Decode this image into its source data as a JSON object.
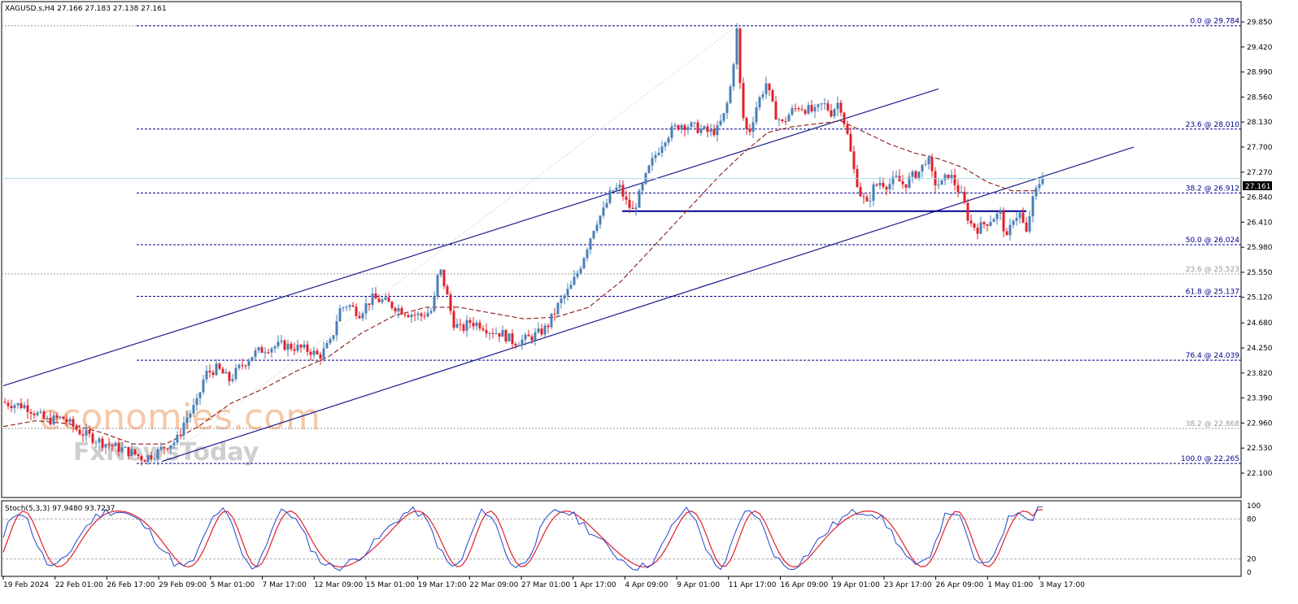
{
  "header": {
    "symbol_line": "XAGUSD.s,H4  27.166 27.183 27.138 27.161",
    "stoch_line": "Stoch(5,3,3) 97.9480 93.7237"
  },
  "watermark": {
    "line1": "economies.com",
    "line2": "FxNewsToday"
  },
  "colors": {
    "bull": "#4a7fb5",
    "bear": "#e0202a",
    "channel": "#1c1c8c",
    "fib": "#00008b",
    "fib_gray": "#9a9a9a",
    "ma": "#8b1a1a",
    "stoch_main": "#2244cc",
    "stoch_signal": "#e0202a",
    "current_price_line": "#a8d8e8"
  },
  "chart_data": {
    "type": "candlestick",
    "symbol": "XAGUSD.s",
    "timeframe": "H4",
    "ohlc_last": {
      "open": 27.166,
      "high": 27.183,
      "low": 27.138,
      "close": 27.161
    },
    "current_price": "27.161",
    "y_axis": {
      "ylim": [
        22.1,
        29.9
      ],
      "ticks": [
        "29.850",
        "29.420",
        "28.990",
        "28.560",
        "28.130",
        "27.700",
        "27.270",
        "26.840",
        "26.410",
        "25.980",
        "25.550",
        "25.120",
        "24.680",
        "24.250",
        "23.820",
        "23.390",
        "22.960",
        "22.530",
        "22.100"
      ]
    },
    "x_axis": {
      "ticks": [
        "19 Feb 2024",
        "22 Feb 01:00",
        "26 Feb 17:00",
        "29 Feb 09:00",
        "5 Mar 01:00",
        "7 Mar 17:00",
        "12 Mar 09:00",
        "15 Mar 01:00",
        "19 Mar 17:00",
        "22 Mar 09:00",
        "27 Mar 01:00",
        "1 Apr 17:00",
        "4 Apr 09:00",
        "9 Apr 01:00",
        "11 Apr 17:00",
        "16 Apr 09:00",
        "19 Apr 01:00",
        "23 Apr 17:00",
        "26 Apr 09:00",
        "1 May 01:00",
        "3 May 17:00"
      ]
    },
    "fib_levels": [
      {
        "label": "0.0 @ 29.784",
        "value": 29.784,
        "style": "primary"
      },
      {
        "label": "23.6 @ 28.010",
        "value": 28.01,
        "style": "primary"
      },
      {
        "label": "38.2 @ 26.912",
        "value": 26.912,
        "style": "primary"
      },
      {
        "label": "50.0 @ 26.024",
        "value": 26.024,
        "style": "primary"
      },
      {
        "label": "23.6 @ 25.523",
        "value": 25.523,
        "style": "secondary"
      },
      {
        "label": "61.8 @ 25.137",
        "value": 25.137,
        "style": "primary"
      },
      {
        "label": "76.4 @ 24.039",
        "value": 24.039,
        "style": "primary"
      },
      {
        "label": "38.2 @ 22.868",
        "value": 22.868,
        "style": "secondary"
      },
      {
        "label": "100.0 @ 22.265",
        "value": 22.265,
        "style": "primary"
      }
    ],
    "horizontal_support": 26.6,
    "price_path": [
      [
        0,
        23.32
      ],
      [
        30,
        23.25
      ],
      [
        55,
        23.0
      ],
      [
        75,
        23.05
      ],
      [
        95,
        22.82
      ],
      [
        120,
        22.65
      ],
      [
        140,
        22.55
      ],
      [
        160,
        22.45
      ],
      [
        175,
        22.35
      ],
      [
        190,
        22.45
      ],
      [
        205,
        22.6
      ],
      [
        215,
        22.65
      ],
      [
        225,
        23.0
      ],
      [
        240,
        23.3
      ],
      [
        250,
        23.8
      ],
      [
        265,
        23.9
      ],
      [
        280,
        23.7
      ],
      [
        295,
        23.95
      ],
      [
        310,
        24.15
      ],
      [
        325,
        24.25
      ],
      [
        345,
        24.3
      ],
      [
        365,
        24.25
      ],
      [
        380,
        24.2
      ],
      [
        390,
        24.1
      ],
      [
        405,
        24.35
      ],
      [
        415,
        24.9
      ],
      [
        425,
        25.0
      ],
      [
        440,
        24.85
      ],
      [
        455,
        25.1
      ],
      [
        470,
        25.05
      ],
      [
        485,
        24.95
      ],
      [
        500,
        24.85
      ],
      [
        515,
        24.8
      ],
      [
        530,
        24.9
      ],
      [
        538,
        25.65
      ],
      [
        546,
        25.25
      ],
      [
        555,
        24.7
      ],
      [
        565,
        24.55
      ],
      [
        575,
        24.7
      ],
      [
        590,
        24.65
      ],
      [
        600,
        24.55
      ],
      [
        615,
        24.5
      ],
      [
        630,
        24.35
      ],
      [
        645,
        24.4
      ],
      [
        660,
        24.5
      ],
      [
        670,
        24.6
      ],
      [
        685,
        25.0
      ],
      [
        700,
        25.3
      ],
      [
        710,
        25.6
      ],
      [
        720,
        26.0
      ],
      [
        730,
        26.4
      ],
      [
        740,
        26.6
      ],
      [
        750,
        26.95
      ],
      [
        760,
        27.0
      ],
      [
        768,
        26.75
      ],
      [
        776,
        26.6
      ],
      [
        785,
        26.9
      ],
      [
        795,
        27.3
      ],
      [
        805,
        27.6
      ],
      [
        815,
        27.85
      ],
      [
        825,
        28.0
      ],
      [
        835,
        28.1
      ],
      [
        850,
        28.05
      ],
      [
        860,
        28.0
      ],
      [
        870,
        27.95
      ],
      [
        880,
        28.0
      ],
      [
        890,
        28.3
      ],
      [
        897,
        28.8
      ],
      [
        904,
        29.7
      ],
      [
        910,
        28.3
      ],
      [
        918,
        27.9
      ],
      [
        928,
        28.4
      ],
      [
        940,
        28.8
      ],
      [
        950,
        28.3
      ],
      [
        960,
        28.1
      ],
      [
        970,
        28.3
      ],
      [
        980,
        28.4
      ],
      [
        990,
        28.35
      ],
      [
        1000,
        28.3
      ],
      [
        1010,
        28.45
      ],
      [
        1020,
        28.3
      ],
      [
        1030,
        28.5
      ],
      [
        1040,
        27.9
      ],
      [
        1048,
        27.3
      ],
      [
        1056,
        26.9
      ],
      [
        1064,
        26.7
      ],
      [
        1072,
        27.0
      ],
      [
        1080,
        27.1
      ],
      [
        1090,
        27.05
      ],
      [
        1100,
        27.15
      ],
      [
        1110,
        27.05
      ],
      [
        1120,
        27.2
      ],
      [
        1130,
        27.3
      ],
      [
        1138,
        27.55
      ],
      [
        1146,
        27.1
      ],
      [
        1155,
        27.05
      ],
      [
        1165,
        27.25
      ],
      [
        1175,
        27.0
      ],
      [
        1182,
        26.8
      ],
      [
        1190,
        26.4
      ],
      [
        1200,
        26.3
      ],
      [
        1210,
        26.4
      ],
      [
        1220,
        26.5
      ],
      [
        1228,
        26.55
      ],
      [
        1236,
        26.1
      ],
      [
        1244,
        26.5
      ],
      [
        1252,
        26.55
      ],
      [
        1260,
        26.2
      ],
      [
        1266,
        26.7
      ],
      [
        1272,
        26.95
      ],
      [
        1278,
        27.16
      ]
    ],
    "ma_path": [
      [
        0,
        22.9
      ],
      [
        40,
        23.0
      ],
      [
        80,
        22.95
      ],
      [
        120,
        22.8
      ],
      [
        160,
        22.6
      ],
      [
        200,
        22.6
      ],
      [
        240,
        22.9
      ],
      [
        280,
        23.3
      ],
      [
        320,
        23.55
      ],
      [
        360,
        23.85
      ],
      [
        400,
        24.1
      ],
      [
        440,
        24.5
      ],
      [
        480,
        24.8
      ],
      [
        520,
        24.95
      ],
      [
        560,
        24.95
      ],
      [
        600,
        24.85
      ],
      [
        640,
        24.75
      ],
      [
        680,
        24.78
      ],
      [
        720,
        24.95
      ],
      [
        760,
        25.4
      ],
      [
        800,
        26.0
      ],
      [
        840,
        26.6
      ],
      [
        880,
        27.2
      ],
      [
        910,
        27.6
      ],
      [
        940,
        27.95
      ],
      [
        970,
        28.05
      ],
      [
        1000,
        28.1
      ],
      [
        1030,
        28.15
      ],
      [
        1060,
        27.95
      ],
      [
        1090,
        27.75
      ],
      [
        1120,
        27.6
      ],
      [
        1150,
        27.5
      ],
      [
        1180,
        27.35
      ],
      [
        1210,
        27.1
      ],
      [
        1240,
        26.95
      ],
      [
        1270,
        26.95
      ]
    ],
    "channel_upper": {
      "p1": [
        0,
        23.6
      ],
      "p2": [
        1150,
        28.7
      ]
    },
    "channel_lower": {
      "p1": [
        195,
        22.3
      ],
      "p2": [
        1390,
        27.7
      ]
    },
    "stochastic": {
      "name": "Stoch(5,3,3)",
      "main": 97.948,
      "signal": 93.7237,
      "levels": [
        80,
        20
      ],
      "axis_ticks": [
        "100",
        "80",
        "20",
        "0"
      ]
    }
  }
}
